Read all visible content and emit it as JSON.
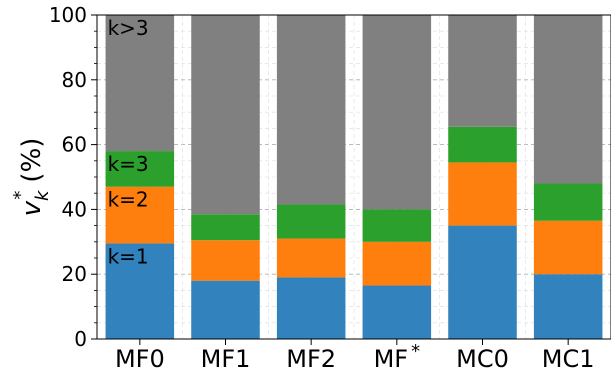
{
  "chart_data": {
    "type": "bar",
    "stacked": true,
    "categories": [
      "MF0",
      "MF1",
      "MF2",
      "MF*",
      "MC0",
      "MC1"
    ],
    "series": [
      {
        "name": "k=1",
        "color": "#3182bd",
        "values": [
          29.5,
          18.0,
          19.0,
          16.5,
          35.0,
          20.0
        ]
      },
      {
        "name": "k=2",
        "color": "#ff7f0e",
        "values": [
          17.5,
          12.5,
          12.0,
          13.5,
          19.5,
          16.5
        ]
      },
      {
        "name": "k=3",
        "color": "#2ca02c",
        "values": [
          11.0,
          8.0,
          10.5,
          10.0,
          11.0,
          11.5
        ]
      },
      {
        "name": "k>3",
        "color": "#808080",
        "values": [
          42.0,
          61.5,
          58.5,
          60.0,
          34.5,
          52.0
        ]
      }
    ],
    "ylabel": "(%)",
    "ylabel_symbol": "v",
    "ylabel_sub": "k",
    "ylabel_sup": "*",
    "ylim": [
      0,
      100
    ],
    "yticks": [
      0,
      20,
      40,
      60,
      80,
      100
    ],
    "grid": true,
    "segment_labels_on_category": "MF0"
  }
}
